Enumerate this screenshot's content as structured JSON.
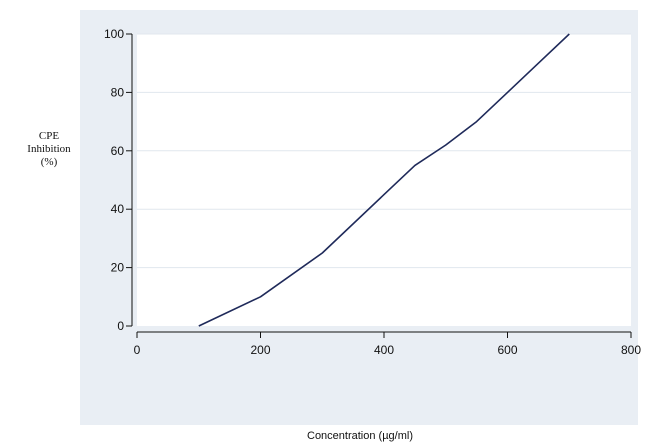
{
  "chart_data": {
    "type": "line",
    "title": "",
    "xlabel": "Concentration (µg/ml)",
    "ylabel_lines": [
      "CPE",
      "Inhibition",
      "(%)"
    ],
    "xlim": [
      0,
      800
    ],
    "ylim": [
      0,
      100
    ],
    "xticks": [
      0,
      200,
      400,
      600,
      800
    ],
    "yticks": [
      0,
      20,
      40,
      60,
      80,
      100
    ],
    "grid": true,
    "series": [
      {
        "x": [
          100,
          200,
          300,
          400,
          450,
          500,
          550,
          600,
          650,
          700
        ],
        "y": [
          0,
          10,
          25,
          45,
          55,
          62,
          70,
          80,
          90,
          100
        ]
      }
    ],
    "colors": {
      "line": "#1f2a5a",
      "panel": "#e9eef4",
      "plot_bg": "#ffffff",
      "grid": "#e1e7ee",
      "axis": "#111111"
    }
  }
}
